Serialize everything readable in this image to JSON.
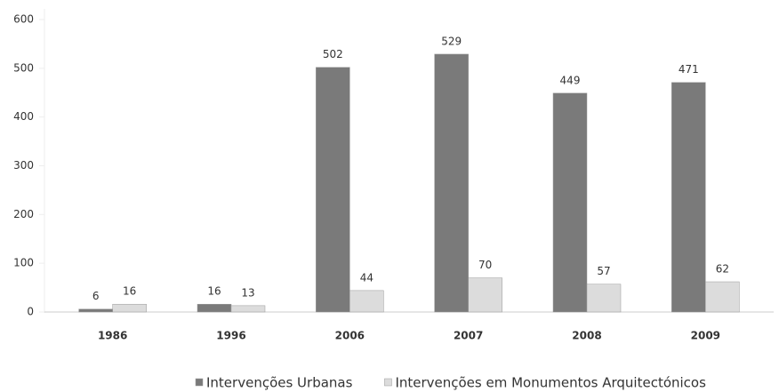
{
  "chart_data": {
    "type": "bar",
    "categories": [
      "1986",
      "1996",
      "2006",
      "2007",
      "2008",
      "2009"
    ],
    "series": [
      {
        "name": "Intervenções Urbanas",
        "color": "#7a7a7a",
        "values": [
          6,
          16,
          502,
          529,
          449,
          471
        ]
      },
      {
        "name": "Intervenções em Monumentos Arquitectónicos",
        "color": "#dcdcdc",
        "values": [
          16,
          13,
          44,
          70,
          57,
          62
        ]
      }
    ],
    "ylim": [
      0,
      600
    ],
    "yticks": [
      0,
      100,
      200,
      300,
      400,
      500,
      600
    ],
    "legend": "bottom"
  }
}
